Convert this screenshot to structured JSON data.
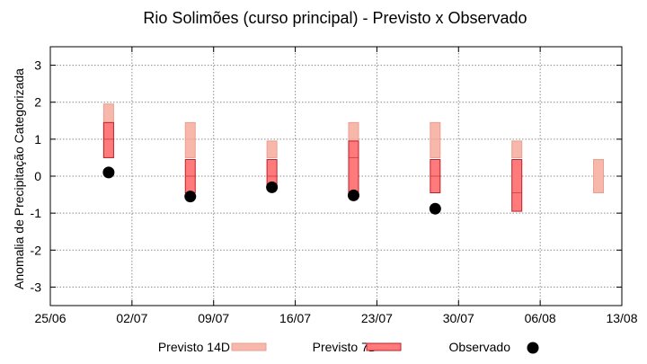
{
  "chart_data": {
    "type": "range",
    "title": "Rio Solimões (curso principal) - Previsto x Observado",
    "xlabel": "",
    "ylabel": "Anomalia de Precipitação Categorizada",
    "x_ticks": [
      "25/06",
      "02/07",
      "09/07",
      "16/07",
      "23/07",
      "30/07",
      "06/08",
      "13/08"
    ],
    "x_range": [
      "25/06",
      "13/08"
    ],
    "ylim": [
      -3.5,
      3.5
    ],
    "y_ticks": [
      -3,
      -2,
      -1,
      0,
      1,
      2,
      3
    ],
    "y_tick_labels": [
      "-3",
      "-2",
      "-1",
      "0",
      "1",
      "2",
      "3"
    ],
    "grid": true,
    "legend_position": "bottom",
    "series": [
      {
        "name": "Previsto 14D",
        "kind": "range",
        "color": "#f7b7aa",
        "points": [
          {
            "x": "30/06",
            "low": 0.5,
            "mid": 1.0,
            "high": 1.95
          },
          {
            "x": "07/07",
            "low": 0.5,
            "mid": 1.0,
            "high": 1.45
          },
          {
            "x": "14/07",
            "low": 0.5,
            "mid": 0.95,
            "high": 0.95
          },
          {
            "x": "21/07",
            "low": 0.5,
            "mid": 1.0,
            "high": 1.45
          },
          {
            "x": "28/07",
            "low": 0.5,
            "mid": 1.0,
            "high": 1.45
          },
          {
            "x": "04/08",
            "low": 0.5,
            "mid": 0.95,
            "high": 0.95
          },
          {
            "x": "11/08",
            "low": -0.45,
            "mid": 0.45,
            "high": 0.45
          }
        ]
      },
      {
        "name": "Previsto 7D",
        "kind": "range",
        "color": "#ff7b7b",
        "points": [
          {
            "x": "30/06",
            "low": 0.5,
            "mid": 1.0,
            "high": 1.45
          },
          {
            "x": "07/07",
            "low": -0.45,
            "mid": 0.0,
            "high": 0.45
          },
          {
            "x": "14/07",
            "low": -0.3,
            "mid": 0.0,
            "high": 0.45
          },
          {
            "x": "21/07",
            "low": -0.45,
            "mid": 0.5,
            "high": 0.95
          },
          {
            "x": "28/07",
            "low": -0.45,
            "mid": 0.0,
            "high": 0.45
          },
          {
            "x": "04/08",
            "low": -0.95,
            "mid": -0.45,
            "high": 0.45
          }
        ]
      },
      {
        "name": "Observado",
        "kind": "scatter",
        "color": "#000000",
        "points": [
          {
            "x": "30/06",
            "y": 0.1
          },
          {
            "x": "07/07",
            "y": -0.55
          },
          {
            "x": "14/07",
            "y": -0.3
          },
          {
            "x": "21/07",
            "y": -0.52
          },
          {
            "x": "28/07",
            "y": -0.88
          }
        ]
      }
    ]
  }
}
